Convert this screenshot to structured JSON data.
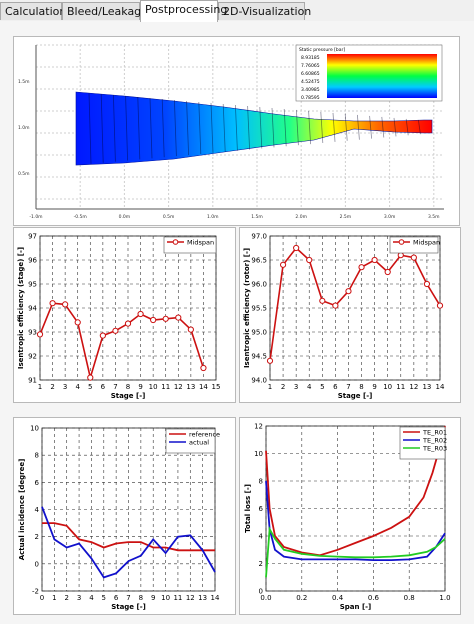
{
  "tabs": [
    {
      "label": "Calculation",
      "active": false
    },
    {
      "label": "Bleed/Leakage",
      "active": false
    },
    {
      "label": "Postprocessing",
      "active": true
    },
    {
      "label": "2D-Visualization",
      "active": false
    }
  ],
  "geometry_view": {
    "legend": {
      "title": "Static pressure [bar]",
      "values": [
        "8.93185",
        "7.76065",
        "6.60865",
        "4.52475",
        "3.40985",
        "0.78595"
      ]
    },
    "y_ticks": [
      "1.5m",
      "1.0m",
      "0.5m"
    ],
    "x_ticks": [
      "-1.0m",
      "-0.5m",
      "0.0m",
      "0.5m",
      "1.0m",
      "1.5m",
      "2.0m",
      "2.5m",
      "3.0m",
      "3.5m"
    ],
    "colors": {
      "low": "#0000ff",
      "mid": "#00ff00",
      "high": "#ff0000"
    }
  },
  "chart_data": [
    {
      "type": "line",
      "legend": [
        "Midspan"
      ],
      "xlabel": "Stage [-]",
      "ylabel": "Isentropic efficiency (stage) [-]",
      "xlim": [
        1,
        15
      ],
      "ylim": [
        91,
        97
      ],
      "xticks": [
        1,
        2,
        3,
        4,
        5,
        6,
        7,
        8,
        9,
        10,
        11,
        12,
        13,
        14,
        15
      ],
      "yticks": [
        91,
        92,
        93,
        94,
        95,
        96,
        97
      ],
      "legend_position": "top-right",
      "grid": true,
      "series": [
        {
          "name": "Midspan",
          "color": "#cc1111",
          "x": [
            1,
            2,
            3,
            4,
            5,
            6,
            7,
            8,
            9,
            10,
            11,
            12,
            13,
            14
          ],
          "y": [
            92.9,
            94.2,
            94.15,
            93.4,
            91.1,
            92.85,
            93.05,
            93.35,
            93.75,
            93.5,
            93.55,
            93.6,
            93.1,
            91.5
          ]
        }
      ]
    },
    {
      "type": "line",
      "legend": [
        "Midspan"
      ],
      "xlabel": "Stage [-]",
      "ylabel": "Isentropic efficiency (rotor) [-]",
      "xlim": [
        1,
        14
      ],
      "ylim": [
        94.0,
        97.0
      ],
      "xticks": [
        1,
        2,
        3,
        4,
        5,
        6,
        7,
        8,
        9,
        10,
        11,
        12,
        13,
        14
      ],
      "yticks": [
        "94.0",
        "94.5",
        "95.0",
        "95.5",
        "96.0",
        "96.5",
        "97.0"
      ],
      "legend_position": "top-right",
      "grid": true,
      "series": [
        {
          "name": "Midspan",
          "color": "#cc1111",
          "x": [
            1,
            2,
            3,
            4,
            5,
            6,
            7,
            8,
            9,
            10,
            11,
            12,
            13,
            14
          ],
          "y": [
            94.4,
            96.4,
            96.75,
            96.5,
            95.65,
            95.55,
            95.85,
            96.35,
            96.5,
            96.25,
            96.6,
            96.55,
            96.0,
            95.55
          ]
        }
      ]
    },
    {
      "type": "line",
      "legend": [
        "reference",
        "actual"
      ],
      "xlabel": "Stage [-]",
      "ylabel": "Actual incidence [degree]",
      "xlim": [
        0,
        14
      ],
      "ylim": [
        -2,
        10
      ],
      "xticks": [
        0,
        1,
        2,
        3,
        4,
        5,
        6,
        7,
        8,
        9,
        10,
        11,
        12,
        13,
        14
      ],
      "yticks": [
        -2,
        0,
        2,
        4,
        6,
        8,
        10
      ],
      "legend_position": "top-right",
      "grid": true,
      "series": [
        {
          "name": "reference",
          "color": "#cc1111",
          "x": [
            0,
            1,
            2,
            3,
            4,
            5,
            6,
            7,
            8,
            9,
            10,
            11,
            12,
            13,
            14
          ],
          "y": [
            3.0,
            3.0,
            2.8,
            1.8,
            1.6,
            1.2,
            1.5,
            1.6,
            1.6,
            1.2,
            1.2,
            1.0,
            1.0,
            1.0,
            1.0
          ]
        },
        {
          "name": "actual",
          "color": "#1111cc",
          "x": [
            0,
            1,
            2,
            3,
            4,
            5,
            6,
            7,
            8,
            9,
            10,
            11,
            12,
            13,
            14
          ],
          "y": [
            4.2,
            1.8,
            1.2,
            1.5,
            0.4,
            -1.0,
            -0.7,
            0.2,
            0.6,
            1.8,
            0.8,
            2.0,
            2.1,
            1.0,
            -0.6
          ]
        }
      ]
    },
    {
      "type": "line",
      "legend": [
        "TE_R01",
        "TE_R02",
        "TE_R03"
      ],
      "xlabel": "Span [-]",
      "ylabel": "Total loss [-]",
      "xlim": [
        0,
        1
      ],
      "ylim": [
        0,
        12
      ],
      "xticks": [
        "0.0",
        "0.2",
        "0.4",
        "0.6",
        "0.8",
        "1.0"
      ],
      "yticks": [
        0,
        2,
        4,
        6,
        8,
        10,
        12
      ],
      "legend_position": "top-right",
      "grid": true,
      "series": [
        {
          "name": "TE_R01",
          "color": "#cc1111",
          "x": [
            0,
            0.02,
            0.05,
            0.1,
            0.2,
            0.3,
            0.4,
            0.5,
            0.6,
            0.7,
            0.8,
            0.88,
            0.93,
            0.97,
            1.0
          ],
          "y": [
            10.2,
            6.0,
            4.0,
            3.2,
            2.8,
            2.6,
            3.0,
            3.5,
            4.0,
            4.6,
            5.4,
            6.8,
            8.6,
            10.4,
            12.0
          ]
        },
        {
          "name": "TE_R02",
          "color": "#1111cc",
          "x": [
            0,
            0.02,
            0.05,
            0.1,
            0.2,
            0.3,
            0.4,
            0.5,
            0.6,
            0.7,
            0.8,
            0.9,
            0.95,
            1.0
          ],
          "y": [
            8.0,
            4.5,
            3.0,
            2.5,
            2.3,
            2.3,
            2.3,
            2.3,
            2.25,
            2.25,
            2.3,
            2.5,
            3.2,
            4.2
          ]
        },
        {
          "name": "TE_R03",
          "color": "#22cc22",
          "x": [
            0,
            0.02,
            0.05,
            0.1,
            0.2,
            0.3,
            0.4,
            0.5,
            0.6,
            0.7,
            0.8,
            0.9,
            0.95,
            1.0
          ],
          "y": [
            1.0,
            4.5,
            3.8,
            3.0,
            2.7,
            2.55,
            2.5,
            2.45,
            2.45,
            2.5,
            2.6,
            2.85,
            3.2,
            3.8
          ]
        }
      ]
    }
  ]
}
